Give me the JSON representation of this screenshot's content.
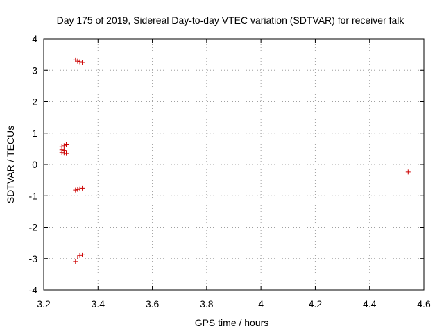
{
  "chart_data": {
    "type": "scatter",
    "title": "Day 175 of 2019, Sidereal Day-to-day VTEC variation (SDTVAR) for receiver falk",
    "xlabel": "GPS time / hours",
    "ylabel": "SDTVAR / TECUs",
    "xlim": [
      3.2,
      4.6
    ],
    "ylim": [
      -4,
      4
    ],
    "x_ticks": [
      "3.2",
      "3.4",
      "3.6",
      "3.8",
      "4",
      "4.2",
      "4.4",
      "4.6"
    ],
    "y_ticks": [
      "-4",
      "-3",
      "-2",
      "-1",
      "0",
      "1",
      "2",
      "3",
      "4"
    ],
    "grid": true,
    "marker": "+",
    "marker_color": "#cc0000",
    "series": [
      {
        "points": [
          {
            "x": 3.317,
            "y": 3.33
          },
          {
            "x": 3.325,
            "y": 3.29
          },
          {
            "x": 3.333,
            "y": 3.27
          },
          {
            "x": 3.342,
            "y": 3.25
          },
          {
            "x": 3.267,
            "y": 0.58
          },
          {
            "x": 3.275,
            "y": 0.6
          },
          {
            "x": 3.283,
            "y": 0.63
          },
          {
            "x": 3.267,
            "y": 0.47
          },
          {
            "x": 3.275,
            "y": 0.45
          },
          {
            "x": 3.267,
            "y": 0.38
          },
          {
            "x": 3.275,
            "y": 0.36
          },
          {
            "x": 3.283,
            "y": 0.35
          },
          {
            "x": 3.317,
            "y": -0.82
          },
          {
            "x": 3.325,
            "y": -0.8
          },
          {
            "x": 3.333,
            "y": -0.78
          },
          {
            "x": 3.342,
            "y": -0.76
          },
          {
            "x": 3.317,
            "y": -3.09
          },
          {
            "x": 3.325,
            "y": -2.95
          },
          {
            "x": 3.333,
            "y": -2.9
          },
          {
            "x": 3.342,
            "y": -2.88
          },
          {
            "x": 4.542,
            "y": -0.24
          }
        ]
      }
    ]
  }
}
